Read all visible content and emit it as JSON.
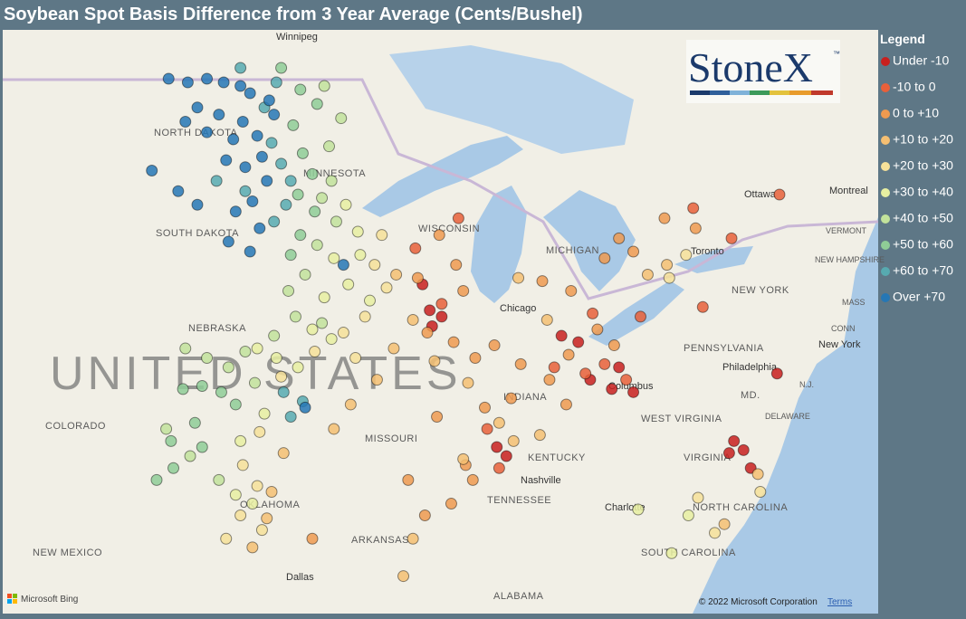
{
  "title": "Soybean Spot Basis Difference from 3 Year Average (Cents/Bushel)",
  "logo": {
    "name": "StoneX",
    "mark": "™"
  },
  "legend": {
    "title": "Legend",
    "items": [
      {
        "label": "Under -10",
        "color": "#c8201e",
        "points": [
          [
            -90.4,
            42.6
          ],
          [
            -90.1,
            41.8
          ],
          [
            -90.0,
            41.3
          ],
          [
            -89.6,
            41.6
          ],
          [
            -84.6,
            41.0
          ],
          [
            -83.9,
            40.8
          ],
          [
            -83.4,
            39.6
          ],
          [
            -82.5,
            39.3
          ],
          [
            -81.6,
            39.2
          ],
          [
            -77.4,
            37.6
          ],
          [
            -77.0,
            37.3
          ],
          [
            -77.6,
            37.2
          ],
          [
            -76.7,
            36.7
          ],
          [
            -87.3,
            37.4
          ],
          [
            -86.9,
            37.1
          ],
          [
            -82.2,
            40.0
          ],
          [
            -75.6,
            39.8
          ]
        ]
      },
      {
        "label": "-10 to 0",
        "color": "#e8603a",
        "points": [
          [
            -88.9,
            44.6
          ],
          [
            -87.7,
            38.0
          ],
          [
            -89.6,
            42.0
          ],
          [
            -84.9,
            40.0
          ],
          [
            -83.6,
            39.8
          ],
          [
            -83.3,
            41.7
          ],
          [
            -82.8,
            40.1
          ],
          [
            -81.3,
            41.6
          ],
          [
            -78.7,
            41.9
          ],
          [
            -87.2,
            36.7
          ],
          [
            -79.1,
            44.9
          ],
          [
            -77.5,
            44.0
          ],
          [
            -75.5,
            45.3
          ],
          [
            -81.9,
            39.6
          ],
          [
            -90.7,
            43.7
          ]
        ]
      },
      {
        "label": "0 to +10",
        "color": "#ef9a50",
        "points": [
          [
            -89.7,
            44.1
          ],
          [
            -89.0,
            43.2
          ],
          [
            -88.7,
            42.4
          ],
          [
            -90.2,
            41.1
          ],
          [
            -89.1,
            40.8
          ],
          [
            -88.2,
            40.3
          ],
          [
            -87.4,
            40.7
          ],
          [
            -86.3,
            40.1
          ],
          [
            -85.1,
            39.6
          ],
          [
            -86.7,
            39.0
          ],
          [
            -84.3,
            40.4
          ],
          [
            -83.1,
            41.2
          ],
          [
            -82.4,
            40.7
          ],
          [
            -84.4,
            38.8
          ],
          [
            -85.4,
            42.7
          ],
          [
            -84.2,
            42.4
          ],
          [
            -82.8,
            43.4
          ],
          [
            -81.6,
            43.6
          ],
          [
            -80.3,
            44.6
          ],
          [
            -79.0,
            44.3
          ],
          [
            -88.3,
            36.3
          ],
          [
            -89.2,
            35.5
          ],
          [
            -90.3,
            35.1
          ],
          [
            -91.0,
            36.3
          ],
          [
            -89.8,
            38.4
          ],
          [
            -87.8,
            38.7
          ],
          [
            -88.6,
            36.8
          ],
          [
            -82.2,
            44.0
          ],
          [
            -95.0,
            34.3
          ],
          [
            -90.6,
            42.8
          ]
        ]
      },
      {
        "label": "+10 to +20",
        "color": "#f5bf72",
        "points": [
          [
            -91.5,
            42.9
          ],
          [
            -90.8,
            41.5
          ],
          [
            -91.6,
            40.6
          ],
          [
            -92.3,
            39.6
          ],
          [
            -93.4,
            38.8
          ],
          [
            -94.1,
            38.0
          ],
          [
            -96.2,
            37.2
          ],
          [
            -96.7,
            35.9
          ],
          [
            -96.9,
            35.0
          ],
          [
            -89.9,
            40.2
          ],
          [
            -88.5,
            39.5
          ],
          [
            -87.2,
            38.2
          ],
          [
            -86.6,
            37.6
          ],
          [
            -85.5,
            37.8
          ],
          [
            -88.7,
            37.0
          ],
          [
            -91.2,
            33.0
          ],
          [
            -90.8,
            34.3
          ],
          [
            -81.0,
            42.9
          ],
          [
            -80.2,
            43.2
          ],
          [
            -77.8,
            34.8
          ],
          [
            -76.4,
            36.5
          ],
          [
            -86.4,
            42.8
          ],
          [
            -85.2,
            41.5
          ],
          [
            -97.5,
            34.0
          ]
        ]
      },
      {
        "label": "+20 to +30",
        "color": "#f6e199",
        "points": [
          [
            -92.4,
            43.2
          ],
          [
            -92.8,
            41.6
          ],
          [
            -93.7,
            41.1
          ],
          [
            -94.9,
            40.5
          ],
          [
            -96.3,
            39.7
          ],
          [
            -97.2,
            37.9
          ],
          [
            -97.9,
            36.8
          ],
          [
            -97.3,
            36.1
          ],
          [
            -98.0,
            35.1
          ],
          [
            -97.1,
            34.6
          ],
          [
            -93.2,
            40.3
          ],
          [
            -91.9,
            42.5
          ],
          [
            -79.4,
            43.5
          ],
          [
            -80.1,
            42.8
          ],
          [
            -78.2,
            34.5
          ],
          [
            -76.3,
            35.9
          ],
          [
            -78.9,
            35.7
          ],
          [
            -98.6,
            34.3
          ],
          [
            -92.1,
            44.1
          ]
        ]
      },
      {
        "label": "+30 to +40",
        "color": "#e7efa1",
        "points": [
          [
            -93.6,
            45.0
          ],
          [
            -93.1,
            44.2
          ],
          [
            -94.1,
            43.4
          ],
          [
            -93.5,
            42.6
          ],
          [
            -94.5,
            42.2
          ],
          [
            -95.0,
            41.2
          ],
          [
            -96.5,
            40.3
          ],
          [
            -97.3,
            40.6
          ],
          [
            -95.6,
            40.0
          ],
          [
            -97.0,
            38.5
          ],
          [
            -93.0,
            43.5
          ],
          [
            -92.6,
            42.1
          ],
          [
            -94.2,
            40.9
          ],
          [
            -98.0,
            37.6
          ],
          [
            -97.5,
            35.5
          ],
          [
            -98.2,
            35.8
          ],
          [
            -81.4,
            35.3
          ],
          [
            -80.0,
            33.8
          ],
          [
            -79.3,
            35.1
          ]
        ]
      },
      {
        "label": "+40 to +50",
        "color": "#c2e29b",
        "points": [
          [
            -94.5,
            48.4
          ],
          [
            -94.3,
            46.7
          ],
          [
            -94.2,
            45.7
          ],
          [
            -94.6,
            45.2
          ],
          [
            -94.0,
            44.5
          ],
          [
            -94.8,
            43.8
          ],
          [
            -95.3,
            42.9
          ],
          [
            -96.0,
            42.4
          ],
          [
            -95.7,
            41.6
          ],
          [
            -96.6,
            41.0
          ],
          [
            -97.8,
            40.5
          ],
          [
            -98.5,
            40.0
          ],
          [
            -99.4,
            40.3
          ],
          [
            -100.3,
            40.6
          ],
          [
            -97.4,
            39.5
          ],
          [
            -101.1,
            38.0
          ],
          [
            -100.1,
            37.1
          ],
          [
            -98.9,
            36.3
          ],
          [
            -93.8,
            47.5
          ],
          [
            -94.6,
            41.4
          ]
        ]
      },
      {
        "label": "+50 to +60",
        "color": "#8fcc96",
        "points": [
          [
            -96.3,
            48.9
          ],
          [
            -95.5,
            48.3
          ],
          [
            -95.8,
            47.3
          ],
          [
            -95.4,
            46.5
          ],
          [
            -95.0,
            45.9
          ],
          [
            -95.6,
            45.3
          ],
          [
            -94.9,
            44.8
          ],
          [
            -95.5,
            44.1
          ],
          [
            -95.9,
            43.5
          ],
          [
            -100.4,
            39.3
          ],
          [
            -99.6,
            39.4
          ],
          [
            -98.8,
            39.2
          ],
          [
            -98.2,
            38.8
          ],
          [
            -99.6,
            37.4
          ],
          [
            -100.8,
            36.7
          ],
          [
            -101.5,
            36.3
          ],
          [
            -100.9,
            37.6
          ],
          [
            -99.9,
            38.2
          ],
          [
            -94.8,
            47.9
          ]
        ]
      },
      {
        "label": "+60 to +70",
        "color": "#57aab0",
        "points": [
          [
            -96.5,
            48.5
          ],
          [
            -97.0,
            47.8
          ],
          [
            -96.7,
            46.8
          ],
          [
            -96.3,
            46.2
          ],
          [
            -95.9,
            45.7
          ],
          [
            -96.1,
            45.0
          ],
          [
            -96.6,
            44.5
          ],
          [
            -99.0,
            45.7
          ],
          [
            -95.4,
            38.9
          ],
          [
            -95.9,
            38.4
          ],
          [
            -96.2,
            39.2
          ],
          [
            -97.8,
            45.4
          ],
          [
            -98.0,
            48.9
          ]
        ]
      },
      {
        "label": "Over +70",
        "color": "#2677b5",
        "points": [
          [
            -101.0,
            48.6
          ],
          [
            -100.2,
            48.5
          ],
          [
            -99.4,
            48.6
          ],
          [
            -98.7,
            48.5
          ],
          [
            -98.0,
            48.4
          ],
          [
            -97.6,
            48.2
          ],
          [
            -99.8,
            47.8
          ],
          [
            -98.9,
            47.6
          ],
          [
            -97.9,
            47.4
          ],
          [
            -97.3,
            47.0
          ],
          [
            -98.3,
            46.9
          ],
          [
            -99.4,
            47.1
          ],
          [
            -100.3,
            47.4
          ],
          [
            -97.1,
            46.4
          ],
          [
            -97.8,
            46.1
          ],
          [
            -98.6,
            46.3
          ],
          [
            -96.9,
            45.7
          ],
          [
            -97.5,
            45.1
          ],
          [
            -98.2,
            44.8
          ],
          [
            -97.2,
            44.3
          ],
          [
            -98.5,
            43.9
          ],
          [
            -97.6,
            43.6
          ],
          [
            -101.7,
            46.0
          ],
          [
            -100.6,
            45.4
          ],
          [
            -99.8,
            45.0
          ],
          [
            -96.6,
            47.6
          ],
          [
            -96.8,
            48.0
          ],
          [
            -95.3,
            38.7
          ],
          [
            -93.7,
            43.2
          ]
        ]
      }
    ]
  },
  "map_labels": [
    "Winnipeg",
    "NORTH DAKOTA",
    "MINNESOTA",
    "SOUTH DAKOTA",
    "NEBRASKA",
    "UNITED STATES",
    "COLORADO",
    "MISSOURI",
    "KENTUCKY",
    "TENNESSEE",
    "OKLAHOMA",
    "ARKANSAS",
    "NEW MEXICO",
    "Dallas",
    "ALABAMA",
    "Chicago",
    "MICHIGAN",
    "Toronto",
    "Ottawa",
    "Montreal",
    "VERMONT",
    "NEW YORK",
    "PENNSYLVANIA",
    "Philadelphia",
    "New York",
    "Columbus",
    "WEST VIRGINIA",
    "MD.",
    "DELAWARE",
    "VIRGINIA",
    "Nashville",
    "NORTH CAROLINA",
    "Charlotte",
    "SOUTH CAROLINA",
    "CONN",
    "N.J.",
    "MASS",
    "WISCONSIN",
    "INDIANA",
    "NEW HAMPSHIRE"
  ],
  "attribution": {
    "bing": "Microsoft Bing",
    "copyright": "© 2022 Microsoft Corporation",
    "terms": "Terms"
  }
}
